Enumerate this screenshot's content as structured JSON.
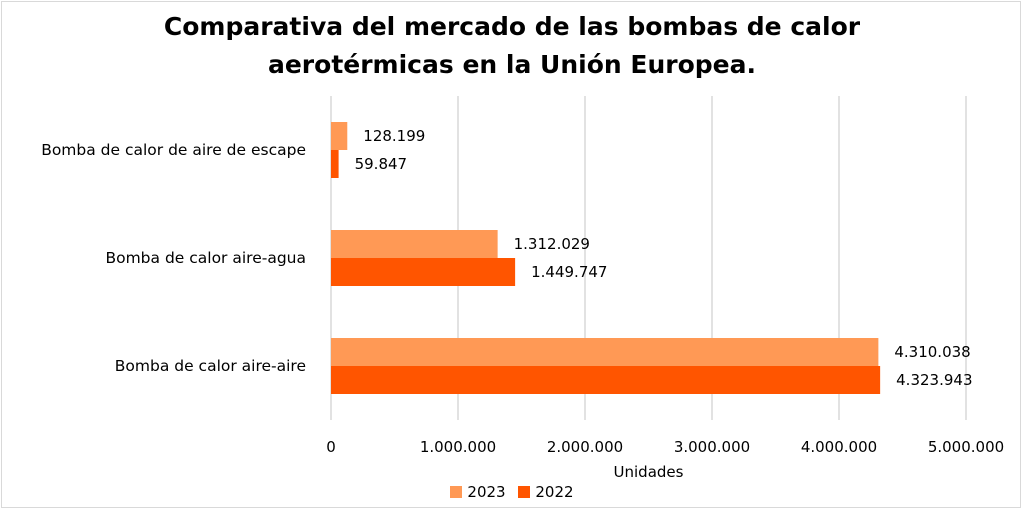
{
  "chart_data": {
    "type": "bar",
    "orientation": "horizontal",
    "title_lines": [
      "Comparativa del mercado de las bombas de calor",
      "aerotérmicas en la Unión Europea."
    ],
    "categories": [
      "Bomba de calor de aire de escape",
      "Bomba de calor aire-agua",
      "Bomba de calor aire-aire"
    ],
    "series": [
      {
        "name": "2023",
        "color": "#ff9955",
        "values": [
          128199,
          1312029,
          4310038
        ],
        "labels": [
          "128.199",
          "1.312.029",
          "4.310.038"
        ]
      },
      {
        "name": "2022",
        "color": "#ff5500",
        "values": [
          59847,
          1449747,
          4323943
        ],
        "labels": [
          "59.847",
          "1.449.747",
          "4.323.943"
        ]
      }
    ],
    "xlabel": "Unidades",
    "xlim": [
      0,
      5000000
    ],
    "xticks": [
      0,
      1000000,
      2000000,
      3000000,
      4000000,
      5000000
    ],
    "xtick_labels": [
      "0",
      "1.000.000",
      "2.000.000",
      "3.000.000",
      "4.000.000",
      "5.000.000"
    ],
    "grid": true,
    "legend_position": "bottom"
  }
}
